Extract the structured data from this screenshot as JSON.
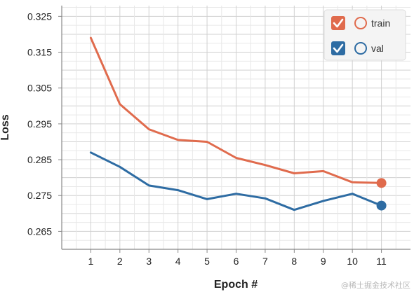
{
  "chart_data": {
    "type": "line",
    "xlabel": "Epoch #",
    "ylabel": "Loss",
    "x": [
      1,
      2,
      3,
      4,
      5,
      6,
      7,
      8,
      9,
      10,
      11
    ],
    "xlim": [
      0,
      12
    ],
    "ylim": [
      0.26,
      0.328
    ],
    "yticks": [
      0.265,
      0.275,
      0.285,
      0.295,
      0.305,
      0.315,
      0.325
    ],
    "ytick_labels": [
      "0.265",
      "0.275",
      "0.285",
      "0.295",
      "0.305",
      "0.315",
      "0.325"
    ],
    "xtick_labels": [
      "1",
      "2",
      "3",
      "4",
      "5",
      "6",
      "7",
      "8",
      "9",
      "10",
      "11"
    ],
    "grid": true,
    "legend_position": "top-right",
    "series": [
      {
        "name": "train",
        "color": "#e06b4d",
        "values": [
          0.319,
          0.3005,
          0.2935,
          0.2905,
          0.29,
          0.2855,
          0.2835,
          0.2812,
          0.2818,
          0.2787,
          0.2785
        ]
      },
      {
        "name": "val",
        "color": "#2e6ca3",
        "values": [
          0.287,
          0.283,
          0.2778,
          0.2765,
          0.274,
          0.2755,
          0.2742,
          0.271,
          0.2735,
          0.2755,
          0.2722
        ]
      }
    ]
  },
  "watermark": "@稀土掘金技术社区"
}
